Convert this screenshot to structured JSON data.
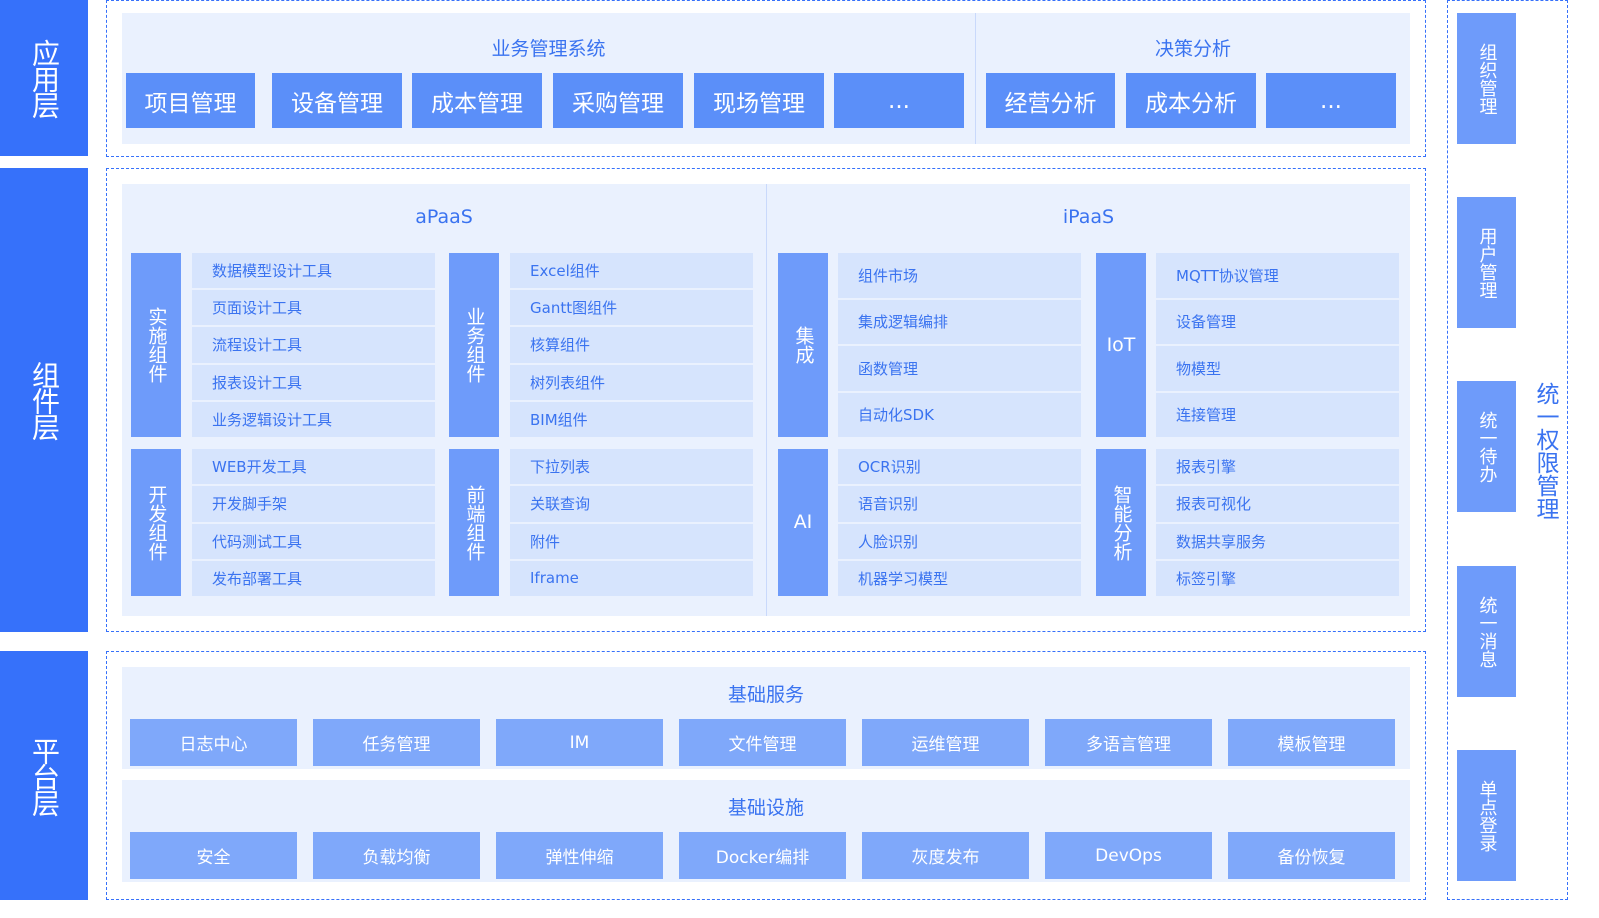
{
  "layers": [
    "应用层",
    "组件层",
    "平台层"
  ],
  "app": {
    "groups": [
      {
        "title": "业务管理系统",
        "items": [
          "项目管理",
          "设备管理",
          "成本管理",
          "采购管理",
          "现场管理",
          "..."
        ]
      },
      {
        "title": "决策分析",
        "items": [
          "经营分析",
          "成本分析",
          "..."
        ]
      }
    ]
  },
  "components": {
    "apaas": {
      "title": "aPaaS",
      "groups": [
        {
          "label": "实施组件",
          "items": [
            "数据模型设计工具",
            "页面设计工具",
            "流程设计工具",
            "报表设计工具",
            "业务逻辑设计工具"
          ]
        },
        {
          "label": "业务组件",
          "items": [
            "Excel组件",
            "Gantt图组件",
            "核算组件",
            "树列表组件",
            "BIM组件"
          ]
        },
        {
          "label": "开发组件",
          "items": [
            "WEB开发工具",
            "开发脚手架",
            "代码测试工具",
            "发布部署工具"
          ]
        },
        {
          "label": "前端组件",
          "items": [
            "下拉列表",
            "关联查询",
            "附件",
            "Iframe"
          ]
        }
      ]
    },
    "ipaas": {
      "title": "iPaaS",
      "groups": [
        {
          "label": "集成",
          "items": [
            "组件市场",
            "集成逻辑编排",
            "函数管理",
            "自动化SDK"
          ]
        },
        {
          "label": "IoT",
          "items": [
            "MQTT协议管理",
            "设备管理",
            "物模型",
            "连接管理"
          ]
        },
        {
          "label": "AI",
          "items": [
            "OCR识别",
            "语音识别",
            "人脸识别",
            "机器学习模型"
          ]
        },
        {
          "label": "智能分析",
          "items": [
            "报表引擎",
            "报表可视化",
            "数据共享服务",
            "标签引擎"
          ]
        }
      ]
    }
  },
  "platform": {
    "services": {
      "title": "基础服务",
      "items": [
        "日志中心",
        "任务管理",
        "IM",
        "文件管理",
        "运维管理",
        "多语言管理",
        "模板管理"
      ]
    },
    "infra": {
      "title": "基础设施",
      "items": [
        "安全",
        "负载均衡",
        "弹性伸缩",
        "Docker编排",
        "灰度发布",
        "DevOps",
        "备份恢复"
      ]
    }
  },
  "right": {
    "title": "统一权限管理",
    "items": [
      "组织管理",
      "用户管理",
      "统一待办",
      "统一消息",
      "单点登录"
    ]
  },
  "colors": {
    "layer": "#3671fa",
    "app_button": "#5b8ff9",
    "side_label": "#6e9bfa",
    "item": "#d6e4fd",
    "panel": "#eaf1fe",
    "text": "#3a73f0"
  }
}
